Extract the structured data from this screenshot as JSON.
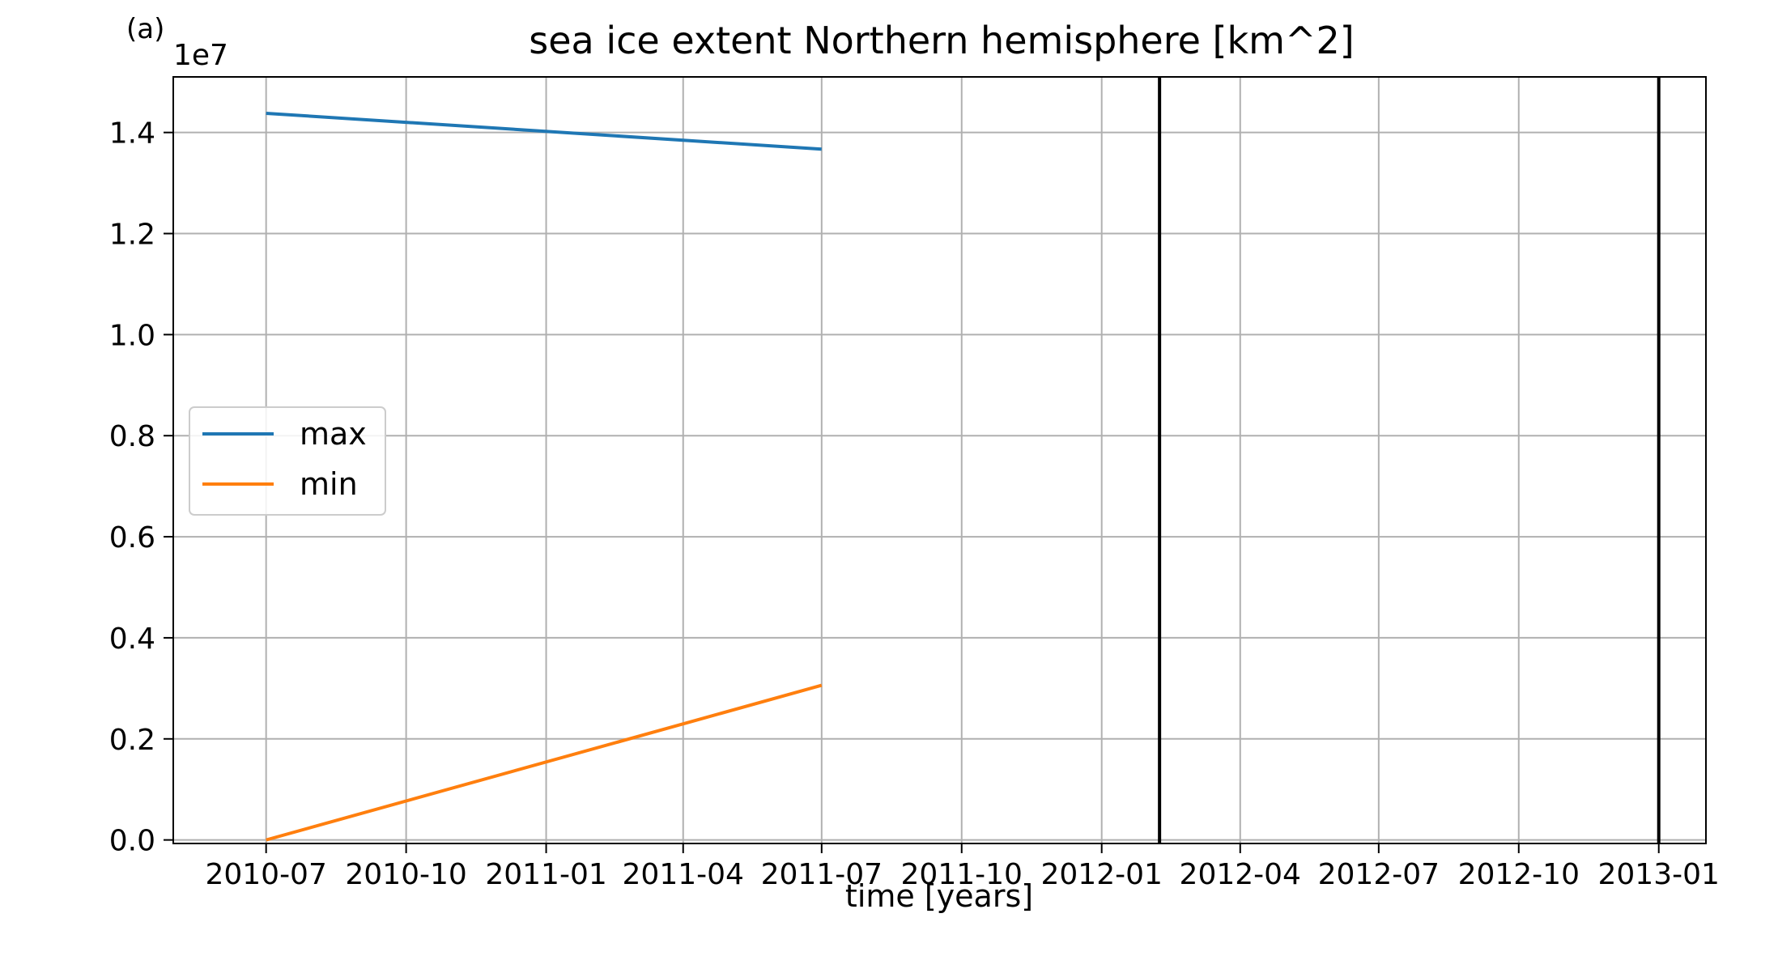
{
  "panel_label": "(a)",
  "chart_data": {
    "type": "line",
    "title": "sea ice extent Northern hemisphere [km^2]",
    "xlabel": "time [years]",
    "ylabel": "",
    "y_offset_label": "1e7",
    "x_ticks": [
      "2010-07",
      "2010-10",
      "2011-01",
      "2011-04",
      "2011-07",
      "2011-10",
      "2012-01",
      "2012-04",
      "2012-07",
      "2012-10",
      "2013-01"
    ],
    "y_ticks": [
      "0.0",
      "0.2",
      "0.4",
      "0.6",
      "0.8",
      "1.0",
      "1.2",
      "1.4"
    ],
    "xlim": [
      "2010-05",
      "2013-02"
    ],
    "ylim": [
      -70000,
      15100000
    ],
    "grid": true,
    "legend_position": "center-left",
    "series": [
      {
        "name": "max",
        "color": "#1f77b4",
        "x": [
          "2010-07",
          "2011-07"
        ],
        "values": [
          14380000,
          13670000
        ]
      },
      {
        "name": "min",
        "color": "#ff7f0e",
        "x": [
          "2010-07",
          "2011-07"
        ],
        "values": [
          0,
          3060000
        ]
      }
    ],
    "vertical_lines": [
      {
        "x": "2012-02-08",
        "color": "#000000"
      },
      {
        "x": "2013-01-01",
        "color": "#000000"
      }
    ]
  }
}
